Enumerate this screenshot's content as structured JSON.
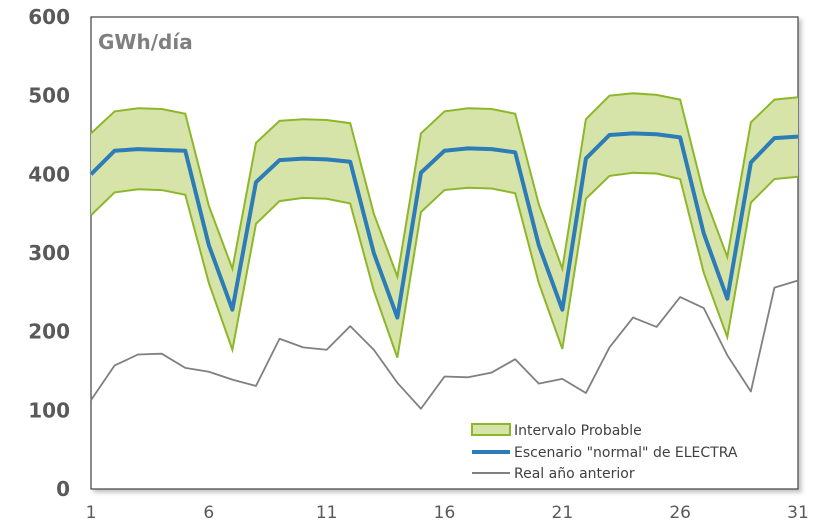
{
  "chart_data": {
    "type": "line",
    "unit_label": "GWh/día",
    "x": [
      1,
      2,
      3,
      4,
      5,
      6,
      7,
      8,
      9,
      10,
      11,
      12,
      13,
      14,
      15,
      16,
      17,
      18,
      19,
      20,
      21,
      22,
      23,
      24,
      25,
      26,
      27,
      28,
      29,
      30,
      31
    ],
    "xticks": [
      1,
      6,
      11,
      16,
      21,
      26,
      31
    ],
    "yticks": [
      0,
      100,
      200,
      300,
      400,
      500,
      600
    ],
    "ylim": [
      0,
      600
    ],
    "xlim": [
      1,
      31
    ],
    "band": {
      "name": "Intervalo Probable",
      "upper": [
        452,
        480,
        484,
        483,
        477,
        360,
        280,
        440,
        468,
        470,
        469,
        465,
        350,
        270,
        452,
        480,
        484,
        483,
        477,
        362,
        280,
        470,
        500,
        503,
        501,
        495,
        375,
        295,
        466,
        495,
        498
      ],
      "lower": [
        348,
        377,
        381,
        380,
        374,
        262,
        177,
        337,
        366,
        370,
        369,
        363,
        252,
        167,
        352,
        380,
        383,
        382,
        376,
        262,
        178,
        369,
        398,
        402,
        401,
        394,
        275,
        193,
        364,
        394,
        397
      ],
      "fill": "#d7e4a9",
      "stroke": "#8db72b"
    },
    "series": [
      {
        "name": "Escenario \"normal\" de ELECTRA",
        "values": [
          400,
          430,
          432,
          431,
          430,
          310,
          228,
          390,
          418,
          420,
          419,
          416,
          300,
          218,
          402,
          430,
          433,
          432,
          428,
          310,
          228,
          420,
          450,
          452,
          451,
          447,
          325,
          242,
          415,
          446,
          448
        ],
        "color": "#2c7cb8"
      },
      {
        "name": "Real año anterior",
        "values": [
          113,
          157,
          171,
          172,
          154,
          149,
          139,
          131,
          191,
          180,
          177,
          207,
          177,
          135,
          102,
          143,
          142,
          148,
          165,
          134,
          140,
          122,
          180,
          218,
          206,
          244,
          230,
          170,
          124,
          256,
          265
        ],
        "color": "#808080"
      }
    ],
    "grid": false,
    "legend_position": "bottom-right"
  }
}
